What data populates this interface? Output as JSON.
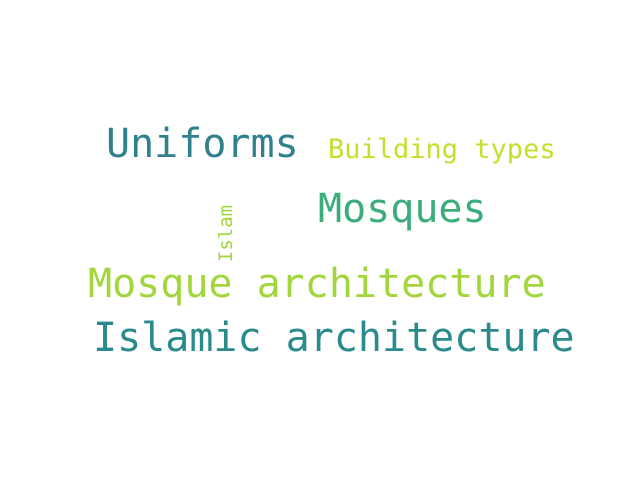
{
  "words": {
    "uniforms": {
      "text": "Uniforms",
      "color": "#31808d"
    },
    "building_types": {
      "text": "Building types",
      "color": "#c5df2b"
    },
    "mosques": {
      "text": "Mosques",
      "color": "#3aad7a"
    },
    "islam": {
      "text": "Islam",
      "color": "#a2d63c"
    },
    "mosque_architecture": {
      "text": "Mosque architecture",
      "color": "#a2d63c"
    },
    "islamic_architecture": {
      "text": "Islamic architecture",
      "color": "#2b8a8c"
    }
  }
}
